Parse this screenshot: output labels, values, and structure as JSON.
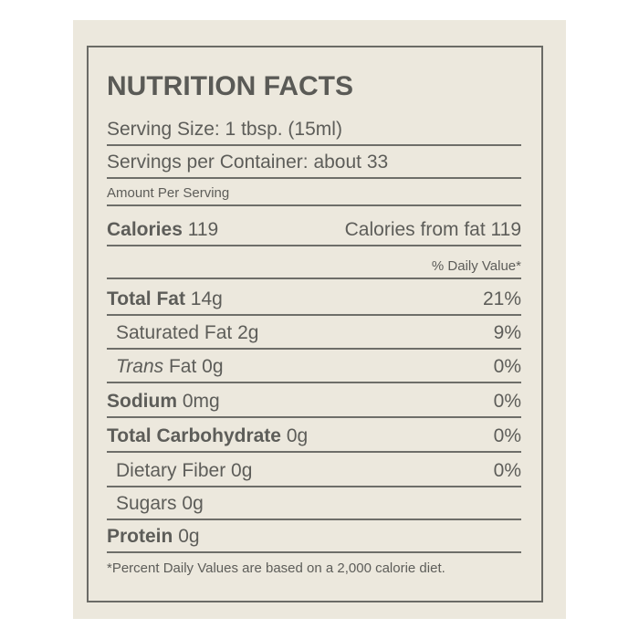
{
  "title": "NUTRITION FACTS",
  "serving_size": "Serving Size: 1 tbsp. (15ml)",
  "servings_per_container": "Servings per Container: about 33",
  "amount_per_serving": "Amount Per Serving",
  "calories": {
    "label": "Calories",
    "value": "119",
    "from_fat": "Calories from fat 119"
  },
  "daily_value_header": "% Daily Value*",
  "nutrients": [
    {
      "label": "Total Fat",
      "amount": "14g",
      "dv": "21%"
    },
    {
      "label": "Saturated Fat",
      "amount": "2g",
      "dv": "9%"
    },
    {
      "label": "Trans",
      "label2": "Fat 0g",
      "dv": "0%"
    },
    {
      "label": "Sodium",
      "amount": "0mg",
      "dv": "0%"
    },
    {
      "label": "Total Carbohydrate",
      "amount": "0g",
      "dv": "0%"
    },
    {
      "label": "Dietary Fiber",
      "amount": "0g",
      "dv": "0%"
    },
    {
      "label": "Sugars",
      "amount": "0g",
      "dv": ""
    },
    {
      "label": "Protein",
      "amount": "0g",
      "dv": ""
    }
  ],
  "footnote": "*Percent Daily Values are based on a 2,000 calorie diet."
}
